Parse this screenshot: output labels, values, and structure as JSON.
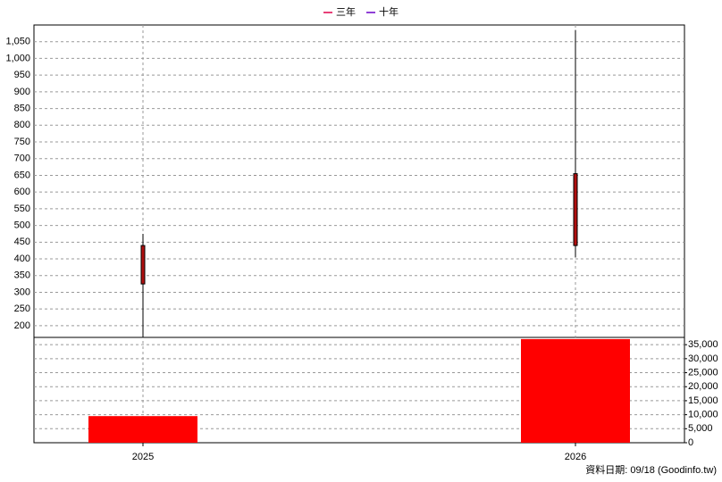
{
  "chart_data": {
    "type": "candlestick",
    "categories": [
      "2025",
      "2026"
    ],
    "open": [
      325,
      440
    ],
    "high": [
      475,
      1085
    ],
    "low": [
      165,
      405
    ],
    "close": [
      440,
      655
    ],
    "color": "#b01010",
    "ylim": [
      165,
      1100
    ],
    "yticks": [
      200,
      250,
      300,
      350,
      400,
      450,
      500,
      550,
      600,
      650,
      700,
      750,
      800,
      850,
      900,
      950,
      {
        "value": 1000,
        "label": "1,000"
      },
      {
        "value": 1050,
        "label": "1,050"
      }
    ],
    "grid": true,
    "volume": {
      "values": [
        9500,
        37000
      ],
      "color": "#ff0000",
      "ylim": [
        0,
        37600
      ],
      "yticks": [
        0,
        {
          "value": 5000,
          "label": "5,000"
        },
        {
          "value": 10000,
          "label": "10,000"
        },
        {
          "value": 15000,
          "label": "15,000"
        },
        {
          "value": 20000,
          "label": "20,000"
        },
        {
          "value": 25000,
          "label": "25,000"
        },
        {
          "value": 30000,
          "label": "30,000"
        },
        {
          "value": 35000,
          "label": "35,000"
        }
      ]
    },
    "legend": [
      {
        "name": "三年",
        "color": "#e0004a"
      },
      {
        "name": "十年",
        "color": "#6a00c8"
      }
    ],
    "footnote": "資料日期: 09/18  (Goodinfo.tw)"
  }
}
